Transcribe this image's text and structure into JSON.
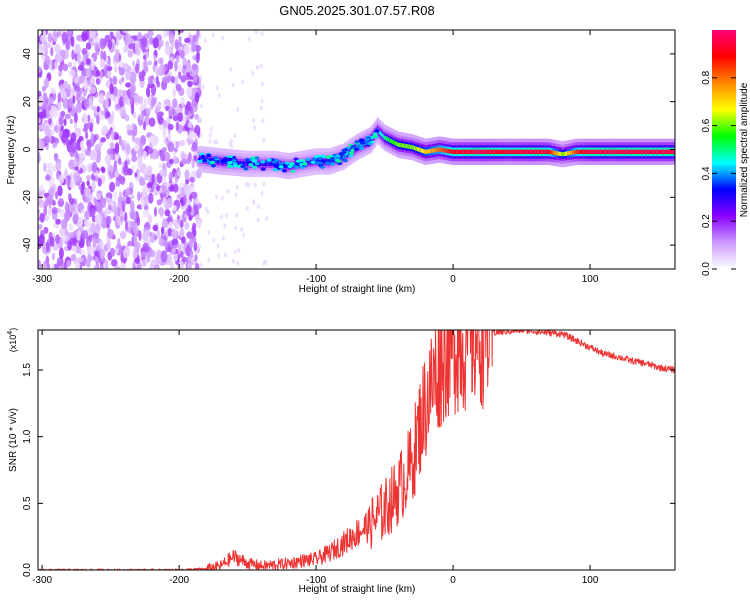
{
  "title": "GN05.2025.301.07.57.R08",
  "chart_data": [
    {
      "type": "heatmap",
      "xlabel": "Height of straight line (km)",
      "ylabel": "Frequency (Hz)",
      "xlim": [
        -303,
        162
      ],
      "ylim": [
        -50,
        50
      ],
      "x_ticks": [
        -300,
        -200,
        -100,
        0,
        100
      ],
      "x_tick_labels": [
        "-300",
        "-200",
        "-100",
        "0",
        "100"
      ],
      "y_ticks": [
        -40,
        -20,
        0,
        20,
        40
      ],
      "y_tick_labels": [
        "-40",
        "-20",
        "0",
        "20",
        "40"
      ],
      "colorbar": {
        "label": "Normalized spectral amplitude",
        "range": [
          0,
          1
        ],
        "ticks": [
          0.0,
          0.2,
          0.4,
          0.6,
          0.8
        ],
        "tick_labels": [
          "0.0",
          "0.2",
          "0.4",
          "0.6",
          "0.8"
        ],
        "colors": [
          "#ffffff",
          "#cc99ff",
          "#8800ff",
          "#0000ff",
          "#00ffff",
          "#00ff00",
          "#ffff00",
          "#ff8800",
          "#ff0000",
          "#ff0077"
        ]
      },
      "noise_region": {
        "x_range": [
          -303,
          -185
        ],
        "freq_range": [
          -50,
          50
        ]
      },
      "ridge": {
        "x": [
          -185,
          -170,
          -150,
          -130,
          -120,
          -110,
          -100,
          -90,
          -80,
          -70,
          -60,
          -55,
          -50,
          -40,
          -30,
          -20,
          -10,
          0,
          20,
          40,
          60,
          70,
          80,
          90,
          100,
          120,
          140,
          162
        ],
        "freq": [
          -4,
          -5,
          -6,
          -6,
          -7,
          -6,
          -5,
          -5,
          -3,
          1,
          4,
          8,
          5,
          2,
          1,
          -1,
          0,
          -1,
          -1,
          -1,
          -1,
          -1,
          -2,
          -1,
          -1,
          -1,
          -1,
          -1
        ],
        "amplitude": [
          0.3,
          0.35,
          0.3,
          0.3,
          0.35,
          0.3,
          0.3,
          0.35,
          0.35,
          0.4,
          0.45,
          0.4,
          0.5,
          0.6,
          0.6,
          0.7,
          0.8,
          0.9,
          0.95,
          0.9,
          0.95,
          0.9,
          0.6,
          0.85,
          0.95,
          0.95,
          0.95,
          0.95
        ]
      }
    },
    {
      "type": "line",
      "xlabel": "Height of straight line (km)",
      "ylabel": "SNR (10 * v/v)",
      "y_multiplier_label": "(x10",
      "y_multiplier_exp": "4",
      "xlim": [
        -303,
        162
      ],
      "ylim": [
        0,
        1.8
      ],
      "x_ticks": [
        -300,
        -200,
        -100,
        0,
        100
      ],
      "x_tick_labels": [
        "-300",
        "-200",
        "-100",
        "0",
        "100"
      ],
      "y_ticks": [
        0.0,
        0.5,
        1.0,
        1.5
      ],
      "y_tick_labels": [
        "0.0",
        "0.5",
        "1.0",
        "1.5"
      ],
      "series": [
        {
          "color": "#ee3333",
          "x": [
            -303,
            -250,
            -200,
            -180,
            -170,
            -160,
            -150,
            -140,
            -120,
            -110,
            -100,
            -90,
            -80,
            -70,
            -60,
            -50,
            -40,
            -30,
            -25,
            -20,
            -15,
            -10,
            -5,
            0,
            10,
            20,
            30,
            40,
            50,
            60,
            70,
            80,
            90,
            100,
            110,
            120,
            130,
            140,
            150,
            162
          ],
          "y": [
            0.0,
            0.0,
            0.0,
            0.01,
            0.03,
            0.1,
            0.05,
            0.03,
            0.05,
            0.07,
            0.08,
            0.13,
            0.2,
            0.28,
            0.35,
            0.45,
            0.6,
            0.8,
            1.05,
            1.25,
            1.4,
            1.55,
            1.65,
            1.7,
            1.72,
            1.77,
            1.78,
            1.79,
            1.8,
            1.79,
            1.78,
            1.77,
            1.72,
            1.67,
            1.62,
            1.6,
            1.57,
            1.55,
            1.52,
            1.5
          ]
        }
      ]
    }
  ]
}
